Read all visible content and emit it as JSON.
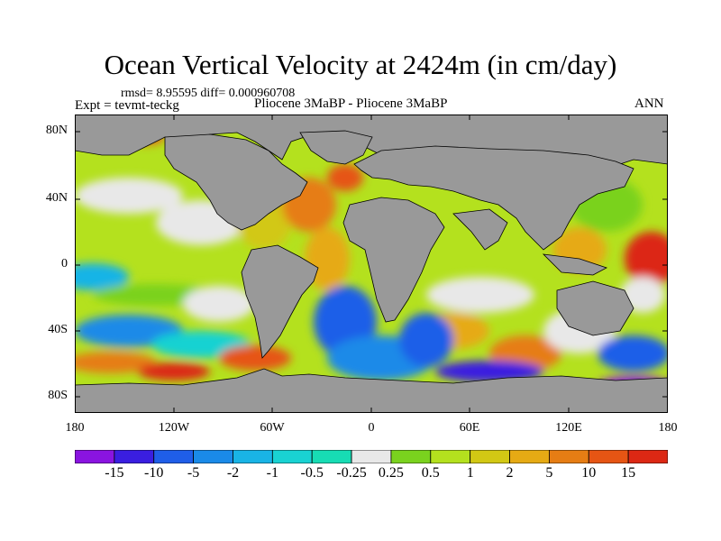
{
  "plot": {
    "title": "Ocean Vertical Velocity at 2424m (in cm/day)",
    "stats": "rmsd= 8.95595 diff= 0.000960708",
    "experiment": "Expt = tevmt-teckg",
    "subtitle": "Pliocene  3MaBP - Pliocene  3MaBP",
    "season": "ANN"
  },
  "axes": {
    "lat_labels": [
      "80N",
      "40N",
      "0",
      "40S",
      "80S"
    ],
    "lon_labels": [
      "180",
      "120W",
      "60W",
      "0",
      "60E",
      "120E",
      "180"
    ]
  },
  "colorbar": {
    "labels": [
      "-15",
      "-10",
      "-5",
      "-2",
      "-1",
      "-0.5",
      "-0.25",
      "0.25",
      "0.5",
      "1",
      "2",
      "5",
      "10",
      "15"
    ],
    "colors": [
      "#8a14e0",
      "#3a1ee0",
      "#1f5ee8",
      "#1a8ae8",
      "#19b4e6",
      "#19d2d2",
      "#17dcb4",
      "#e8e8e8",
      "#7ad21e",
      "#b4e11e",
      "#d2c814",
      "#e6aa14",
      "#e67d14",
      "#e65514",
      "#dc2814"
    ]
  },
  "colors": {
    "land": "#999999",
    "coast": "#000000",
    "background": "#ffffff"
  }
}
